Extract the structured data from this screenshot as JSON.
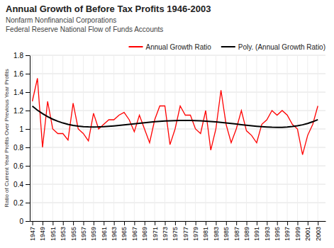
{
  "chart_data": {
    "type": "line",
    "title": "Annual Growth of Before Tax Profits 1946-2003",
    "subtitle": [
      "Nonfarm Nonfinancial Corporations",
      "Federal Reserve National Flow of Funds Accounts"
    ],
    "ylabel": "Ratio of Current Year Profits Over Previous Year Profits",
    "xlim": [
      1946.5,
      2004.5
    ],
    "xticks": [
      1947,
      1949,
      1951,
      1953,
      1955,
      1957,
      1959,
      1961,
      1963,
      1965,
      1967,
      1969,
      1971,
      1973,
      1975,
      1977,
      1979,
      1981,
      1983,
      1985,
      1987,
      1989,
      1991,
      1993,
      1995,
      1997,
      1999,
      2001,
      2003
    ],
    "ylim": [
      0,
      1.8
    ],
    "yticks": [
      0,
      0.2,
      0.4,
      0.6,
      0.8,
      1,
      1.2,
      1.4,
      1.6,
      1.8
    ],
    "grid": true,
    "legend": "upper right",
    "x": [
      1947,
      1948,
      1949,
      1950,
      1951,
      1952,
      1953,
      1954,
      1955,
      1956,
      1957,
      1958,
      1959,
      1960,
      1961,
      1962,
      1963,
      1964,
      1965,
      1966,
      1967,
      1968,
      1969,
      1970,
      1971,
      1972,
      1973,
      1974,
      1975,
      1976,
      1977,
      1978,
      1979,
      1980,
      1981,
      1982,
      1983,
      1984,
      1985,
      1986,
      1987,
      1988,
      1989,
      1990,
      1991,
      1992,
      1993,
      1994,
      1995,
      1996,
      1997,
      1998,
      1999,
      2000,
      2001,
      2002,
      2003
    ],
    "series": [
      {
        "name": "Annual Growth Ratio",
        "color": "#ff0000",
        "values": [
          1.3,
          1.55,
          0.8,
          1.3,
          1.0,
          0.95,
          0.95,
          0.88,
          1.28,
          1.0,
          0.95,
          0.87,
          1.17,
          1.0,
          1.05,
          1.1,
          1.1,
          1.15,
          1.18,
          1.1,
          0.97,
          1.15,
          1.0,
          0.85,
          1.1,
          1.25,
          1.25,
          0.83,
          1.0,
          1.25,
          1.15,
          1.15,
          1.0,
          0.95,
          1.2,
          0.77,
          1.0,
          1.42,
          1.05,
          0.85,
          1.0,
          1.2,
          0.98,
          0.93,
          0.85,
          1.05,
          1.1,
          1.2,
          1.15,
          1.2,
          1.15,
          1.05,
          1.0,
          0.72,
          0.93,
          1.05,
          1.25
        ]
      },
      {
        "name": "Poly. (Annual Growth Ratio)",
        "color": "#000000",
        "values": [
          1.2479,
          1.2038,
          1.1658,
          1.1333,
          1.1059,
          1.0832,
          1.0647,
          1.05,
          1.0388,
          1.0308,
          1.0254,
          1.0224,
          1.0215,
          1.0224,
          1.0247,
          1.0283,
          1.0328,
          1.038,
          1.0437,
          1.0497,
          1.0558,
          1.0619,
          1.0677,
          1.0731,
          1.078,
          1.0824,
          1.086,
          1.0889,
          1.0909,
          1.0921,
          1.0924,
          1.0919,
          1.0904,
          1.088,
          1.0849,
          1.081,
          1.0764,
          1.0712,
          1.0655,
          1.0594,
          1.0532,
          1.0468,
          1.0406,
          1.0347,
          1.0292,
          1.0245,
          1.0208,
          1.0183,
          1.0173,
          1.018,
          1.0209,
          1.0261,
          1.0341,
          1.0453,
          1.0599,
          1.0783,
          1.101
        ]
      }
    ]
  }
}
